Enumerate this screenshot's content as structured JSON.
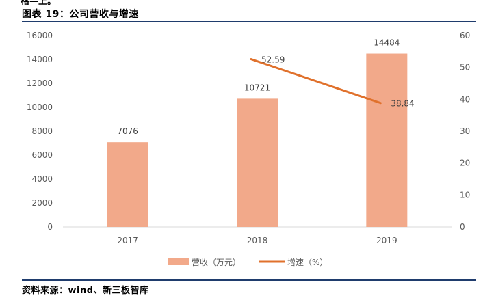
{
  "header": {
    "clipped_text": "格—上。",
    "title": "图表 19：公司营收与增速"
  },
  "footer": {
    "source": "资料来源：wind、新三板智库"
  },
  "chart_data": {
    "type": "bar",
    "categories": [
      "2017",
      "2018",
      "2019"
    ],
    "series": [
      {
        "name": "营收（万元）",
        "type": "bar",
        "axis": "left",
        "values": [
          7076,
          10721,
          14484
        ],
        "labels": [
          "7076",
          "10721",
          "14484"
        ],
        "color": "#F2A98A"
      },
      {
        "name": "增速（%）",
        "type": "line",
        "axis": "right",
        "values": [
          null,
          52.59,
          38.84
        ],
        "labels": [
          "",
          "52.59",
          "38.84"
        ],
        "color": "#E0712C"
      }
    ],
    "y_left": {
      "ticks": [
        "0",
        "2000",
        "4000",
        "6000",
        "8000",
        "10000",
        "12000",
        "14000",
        "16000"
      ],
      "ylim": [
        0,
        16000
      ]
    },
    "y_right": {
      "ticks": [
        "0",
        "10",
        "20",
        "30",
        "40",
        "50",
        "60"
      ],
      "ylim": [
        0,
        60
      ]
    },
    "legend_position": "bottom",
    "grid": false
  }
}
